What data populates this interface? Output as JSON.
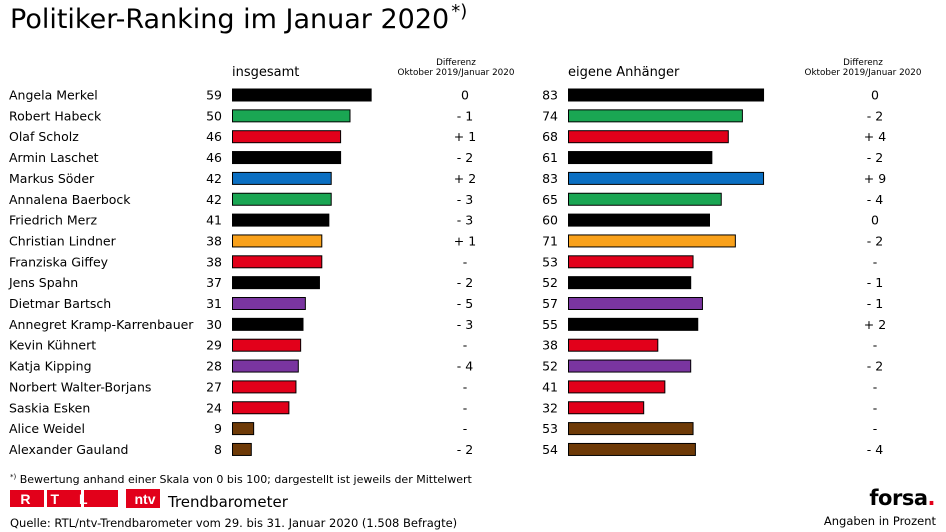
{
  "title": "Politiker-Ranking im Januar 2020",
  "title_marker": "*)",
  "left_header": "insgesamt",
  "right_header": "eigene Anhänger",
  "diff_header_line1": "Differenz",
  "diff_header_line2": "Oktober 2019/Januar 2020",
  "footnote_marker": "*)",
  "footnote": "Bewertung anhand einer Skala von 0 bis 100; dargestellt ist jeweils der Mittelwert",
  "logo_rtl": "RTL",
  "logo_ntv": "ntv",
  "trendbarometer": "Trendbarometer",
  "source": "Quelle: RTL/ntv-Trendbarometer vom 29. bis 31. Januar 2020 (1.508 Befragte)",
  "brand": "forsa",
  "brand_dot": ".",
  "unit_note": "Angaben in Prozent",
  "colors": {
    "CDU/CSU": "#000000",
    "Grüne": "#1aa653",
    "SPD": "#e2001a",
    "CSU": "#0b6fc2",
    "FDP": "#f9a11b",
    "Linke": "#7a35a0",
    "AfD": "#6e3a07"
  },
  "chart_data": {
    "type": "bar",
    "orientation": "horizontal",
    "title": "Politiker-Ranking im Januar 2020",
    "xlim": [
      0,
      100
    ],
    "categories": [
      "Angela Merkel",
      "Robert Habeck",
      "Olaf Scholz",
      "Armin Laschet",
      "Markus Söder",
      "Annalena Baerbock",
      "Friedrich Merz",
      "Christian Lindner",
      "Franziska Giffey",
      "Jens Spahn",
      "Dietmar Bartsch",
      "Annegret Kramp-Karrenbauer",
      "Kevin Kühnert",
      "Katja Kipping",
      "Norbert Walter-Borjans",
      "Saskia Esken",
      "Alice Weidel",
      "Alexander Gauland"
    ],
    "party": [
      "CDU/CSU",
      "Grüne",
      "SPD",
      "CDU/CSU",
      "CSU",
      "Grüne",
      "CDU/CSU",
      "FDP",
      "SPD",
      "CDU/CSU",
      "Linke",
      "CDU/CSU",
      "SPD",
      "Linke",
      "SPD",
      "SPD",
      "AfD",
      "AfD"
    ],
    "series": [
      {
        "name": "insgesamt",
        "values": [
          59,
          50,
          46,
          46,
          42,
          42,
          41,
          38,
          38,
          37,
          31,
          30,
          29,
          28,
          27,
          24,
          9,
          8
        ],
        "diff": [
          "0",
          "- 1",
          "+ 1",
          "- 2",
          "+ 2",
          "- 3",
          "- 3",
          "+ 1",
          "-",
          "- 2",
          "- 5",
          "- 3",
          "-",
          "- 4",
          "-",
          "-",
          "-",
          "- 2"
        ]
      },
      {
        "name": "eigene Anhänger",
        "values": [
          83,
          74,
          68,
          61,
          83,
          65,
          60,
          71,
          53,
          52,
          57,
          55,
          38,
          52,
          41,
          32,
          53,
          54
        ],
        "diff": [
          "0",
          "- 2",
          "+ 4",
          "- 2",
          "+ 9",
          "- 4",
          "0",
          "- 2",
          "-",
          "- 1",
          "- 1",
          "+ 2",
          "-",
          "- 2",
          "-",
          "-",
          "-",
          "- 4"
        ]
      }
    ]
  }
}
